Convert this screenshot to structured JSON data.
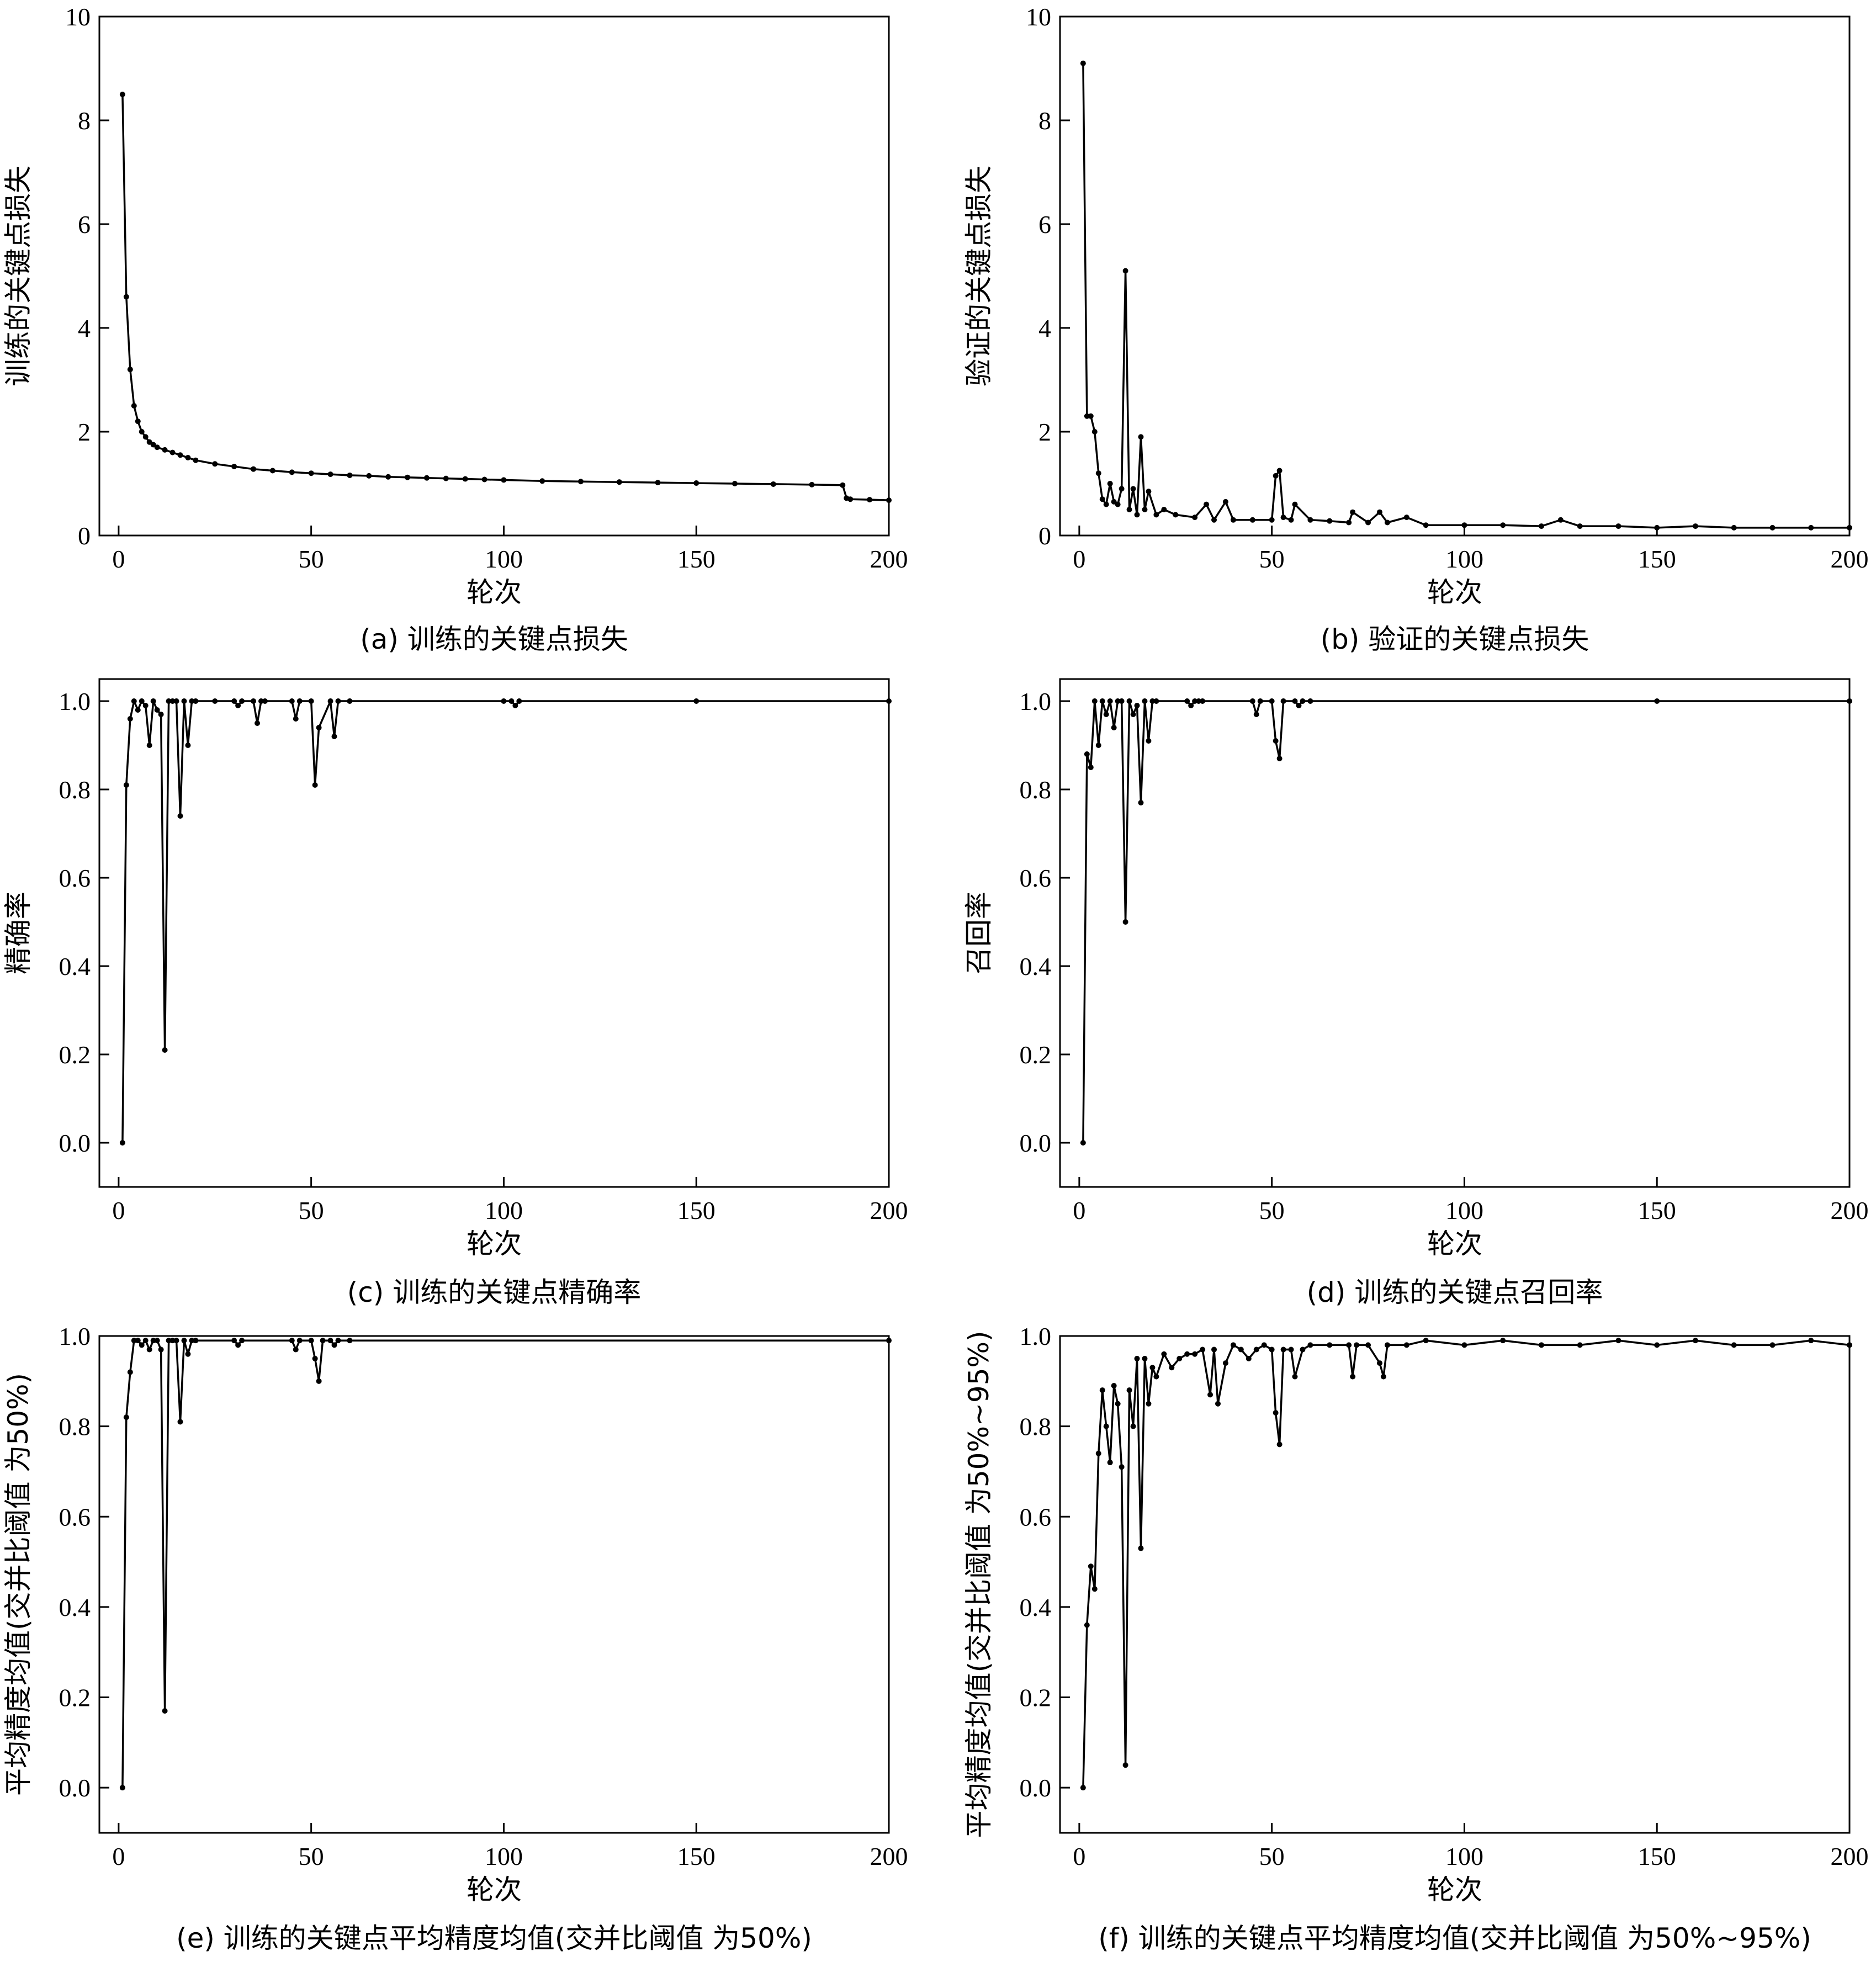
{
  "chart_data": [
    {
      "type": "line",
      "caption": "(a)  训练的关键点损失",
      "xlabel": "轮次",
      "ylabel": "训练的关键点损失",
      "xlim": [
        -5,
        200
      ],
      "ylim": [
        0,
        10
      ],
      "xticks": [
        0,
        50,
        100,
        150,
        200
      ],
      "yticks": [
        0,
        2,
        4,
        6,
        8,
        10
      ],
      "ytick_labels": [
        "0",
        "2",
        "4",
        "6",
        "8",
        "10"
      ],
      "grid": false,
      "x": [
        1,
        2,
        3,
        4,
        5,
        6,
        7,
        8,
        9,
        10,
        12,
        14,
        16,
        18,
        20,
        25,
        30,
        35,
        40,
        45,
        50,
        55,
        60,
        65,
        70,
        75,
        80,
        85,
        90,
        95,
        100,
        110,
        120,
        130,
        140,
        150,
        160,
        170,
        180,
        188,
        189,
        190,
        195,
        200
      ],
      "values": [
        8.5,
        4.6,
        3.2,
        2.5,
        2.2,
        2.0,
        1.9,
        1.8,
        1.75,
        1.7,
        1.65,
        1.6,
        1.55,
        1.5,
        1.45,
        1.38,
        1.33,
        1.28,
        1.25,
        1.22,
        1.2,
        1.18,
        1.16,
        1.15,
        1.13,
        1.12,
        1.11,
        1.1,
        1.09,
        1.08,
        1.07,
        1.05,
        1.04,
        1.03,
        1.02,
        1.01,
        1.0,
        0.99,
        0.98,
        0.97,
        0.72,
        0.7,
        0.69,
        0.68
      ]
    },
    {
      "type": "line",
      "caption": "(b)  验证的关键点损失",
      "xlabel": "轮次",
      "ylabel": "验证的关键点损失",
      "xlim": [
        -5,
        200
      ],
      "ylim": [
        0,
        10
      ],
      "xticks": [
        0,
        50,
        100,
        150,
        200
      ],
      "yticks": [
        0,
        2,
        4,
        6,
        8,
        10
      ],
      "ytick_labels": [
        "0",
        "2",
        "4",
        "6",
        "8",
        "10"
      ],
      "grid": false,
      "x": [
        1,
        2,
        3,
        4,
        5,
        6,
        7,
        8,
        9,
        10,
        11,
        12,
        13,
        14,
        15,
        16,
        17,
        18,
        20,
        22,
        25,
        30,
        33,
        35,
        38,
        40,
        45,
        50,
        51,
        52,
        53,
        55,
        56,
        60,
        65,
        70,
        71,
        75,
        78,
        80,
        85,
        90,
        100,
        110,
        120,
        125,
        130,
        140,
        150,
        160,
        170,
        180,
        190,
        200
      ],
      "values": [
        9.1,
        2.3,
        2.3,
        2.0,
        1.2,
        0.7,
        0.6,
        1.0,
        0.65,
        0.6,
        0.9,
        5.1,
        0.5,
        0.9,
        0.4,
        1.9,
        0.5,
        0.85,
        0.4,
        0.5,
        0.4,
        0.35,
        0.6,
        0.3,
        0.65,
        0.3,
        0.3,
        0.3,
        1.15,
        1.25,
        0.35,
        0.3,
        0.6,
        0.3,
        0.28,
        0.25,
        0.45,
        0.25,
        0.45,
        0.25,
        0.35,
        0.2,
        0.2,
        0.2,
        0.18,
        0.3,
        0.18,
        0.18,
        0.15,
        0.18,
        0.15,
        0.15,
        0.15,
        0.15
      ]
    },
    {
      "type": "line",
      "caption": "(c)  训练的关键点精确率",
      "xlabel": "轮次",
      "ylabel": "精确率",
      "xlim": [
        -5,
        200
      ],
      "ylim": [
        -0.1,
        1.05
      ],
      "xticks": [
        0,
        50,
        100,
        150,
        200
      ],
      "yticks": [
        0,
        0.2,
        0.4,
        0.6,
        0.8,
        1.0
      ],
      "ytick_labels": [
        "0.0",
        "0.2",
        "0.4",
        "0.6",
        "0.8",
        "1.0"
      ],
      "grid": false,
      "x": [
        1,
        2,
        3,
        4,
        5,
        6,
        7,
        8,
        9,
        10,
        11,
        12,
        13,
        14,
        15,
        16,
        17,
        18,
        19,
        20,
        25,
        30,
        31,
        32,
        35,
        36,
        37,
        38,
        45,
        46,
        47,
        50,
        51,
        52,
        55,
        56,
        57,
        60,
        100,
        102,
        103,
        104,
        150,
        200
      ],
      "values": [
        0.0,
        0.81,
        0.96,
        1.0,
        0.98,
        1.0,
        0.99,
        0.9,
        1.0,
        0.98,
        0.97,
        0.21,
        1.0,
        1.0,
        1.0,
        0.74,
        1.0,
        0.9,
        1.0,
        1.0,
        1.0,
        1.0,
        0.99,
        1.0,
        1.0,
        0.95,
        1.0,
        1.0,
        1.0,
        0.96,
        1.0,
        1.0,
        0.81,
        0.94,
        1.0,
        0.92,
        1.0,
        1.0,
        1.0,
        1.0,
        0.99,
        1.0,
        1.0,
        1.0
      ]
    },
    {
      "type": "line",
      "caption": "(d)  训练的关键点召回率",
      "xlabel": "轮次",
      "ylabel": "召回率",
      "xlim": [
        -5,
        200
      ],
      "ylim": [
        -0.1,
        1.05
      ],
      "xticks": [
        0,
        50,
        100,
        150,
        200
      ],
      "yticks": [
        0,
        0.2,
        0.4,
        0.6,
        0.8,
        1.0
      ],
      "ytick_labels": [
        "0.0",
        "0.2",
        "0.4",
        "0.6",
        "0.8",
        "1.0"
      ],
      "grid": false,
      "x": [
        1,
        2,
        3,
        4,
        5,
        6,
        7,
        8,
        9,
        10,
        11,
        12,
        13,
        14,
        15,
        16,
        17,
        18,
        19,
        20,
        28,
        29,
        30,
        31,
        32,
        45,
        46,
        47,
        50,
        51,
        52,
        53,
        56,
        57,
        58,
        60,
        150,
        200
      ],
      "values": [
        0.0,
        0.88,
        0.85,
        1.0,
        0.9,
        1.0,
        0.97,
        1.0,
        0.94,
        1.0,
        1.0,
        0.5,
        1.0,
        0.97,
        0.99,
        0.77,
        1.0,
        0.91,
        1.0,
        1.0,
        1.0,
        0.99,
        1.0,
        1.0,
        1.0,
        1.0,
        0.97,
        1.0,
        1.0,
        0.91,
        0.87,
        1.0,
        1.0,
        0.99,
        1.0,
        1.0,
        1.0,
        1.0
      ]
    },
    {
      "type": "line",
      "caption": "(e)  训练的关键点平均精度均值(交并比阈值 为50%)",
      "xlabel": "轮次",
      "ylabel": "平均精度均值(交并比阈值 为50%)",
      "xlim": [
        -5,
        200
      ],
      "ylim": [
        -0.1,
        1.0
      ],
      "xticks": [
        0,
        50,
        100,
        150,
        200
      ],
      "yticks": [
        0,
        0.2,
        0.4,
        0.6,
        0.8,
        1.0
      ],
      "ytick_labels": [
        "0.0",
        "0.2",
        "0.4",
        "0.6",
        "0.8",
        "1.0"
      ],
      "grid": false,
      "x": [
        1,
        2,
        3,
        4,
        5,
        6,
        7,
        8,
        9,
        10,
        11,
        12,
        13,
        14,
        15,
        16,
        17,
        18,
        19,
        20,
        30,
        31,
        32,
        45,
        46,
        47,
        50,
        51,
        52,
        53,
        55,
        56,
        57,
        60,
        200
      ],
      "values": [
        0.0,
        0.82,
        0.92,
        0.99,
        0.99,
        0.98,
        0.99,
        0.97,
        0.99,
        0.99,
        0.97,
        0.17,
        0.99,
        0.99,
        0.99,
        0.81,
        0.99,
        0.96,
        0.99,
        0.99,
        0.99,
        0.98,
        0.99,
        0.99,
        0.97,
        0.99,
        0.99,
        0.95,
        0.9,
        0.99,
        0.99,
        0.98,
        0.99,
        0.99,
        0.99
      ]
    },
    {
      "type": "line",
      "caption": "(f)  训练的关键点平均精度均值(交并比阈值 为50%~95%)",
      "xlabel": "轮次",
      "ylabel": "平均精度均值(交并比阈值 为50%~95%)",
      "xlim": [
        -5,
        200
      ],
      "ylim": [
        -0.1,
        1.0
      ],
      "xticks": [
        0,
        50,
        100,
        150,
        200
      ],
      "yticks": [
        0,
        0.2,
        0.4,
        0.6,
        0.8,
        1.0
      ],
      "ytick_labels": [
        "0.0",
        "0.2",
        "0.4",
        "0.6",
        "0.8",
        "1.0"
      ],
      "grid": false,
      "x": [
        1,
        2,
        3,
        4,
        5,
        6,
        7,
        8,
        9,
        10,
        11,
        12,
        13,
        14,
        15,
        16,
        17,
        18,
        19,
        20,
        22,
        24,
        26,
        28,
        30,
        32,
        34,
        35,
        36,
        38,
        40,
        42,
        44,
        46,
        48,
        50,
        51,
        52,
        53,
        55,
        56,
        58,
        60,
        65,
        70,
        71,
        72,
        75,
        78,
        79,
        80,
        85,
        90,
        100,
        110,
        120,
        130,
        140,
        150,
        160,
        170,
        180,
        190,
        200
      ],
      "values": [
        0.0,
        0.36,
        0.49,
        0.44,
        0.74,
        0.88,
        0.8,
        0.72,
        0.89,
        0.85,
        0.71,
        0.05,
        0.88,
        0.8,
        0.95,
        0.53,
        0.95,
        0.85,
        0.93,
        0.91,
        0.96,
        0.93,
        0.95,
        0.96,
        0.96,
        0.97,
        0.87,
        0.97,
        0.85,
        0.94,
        0.98,
        0.97,
        0.95,
        0.97,
        0.98,
        0.97,
        0.83,
        0.76,
        0.97,
        0.97,
        0.91,
        0.97,
        0.98,
        0.98,
        0.98,
        0.91,
        0.98,
        0.98,
        0.94,
        0.91,
        0.98,
        0.98,
        0.99,
        0.98,
        0.99,
        0.98,
        0.98,
        0.99,
        0.98,
        0.99,
        0.98,
        0.98,
        0.99,
        0.98
      ]
    }
  ]
}
